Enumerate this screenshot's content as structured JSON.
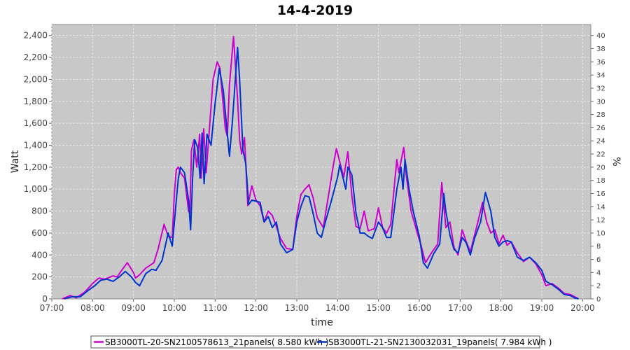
{
  "chart_data": {
    "type": "line",
    "title": "14-4-2019",
    "xlabel": "time",
    "ylabel": "Watt",
    "y2label": "%",
    "ylim": [
      0,
      2500
    ],
    "y2lim": [
      0,
      41.67
    ],
    "xlim": [
      7.0,
      20.2
    ],
    "grid": true,
    "legend_position": "bottom",
    "colors": {
      "plot_bg": "#c8c8c8",
      "grid": "#e6e6e6"
    },
    "xticks": [
      "07:00",
      "08:00",
      "09:00",
      "10:00",
      "11:00",
      "12:00",
      "13:00",
      "14:00",
      "15:00",
      "16:00",
      "17:00",
      "18:00",
      "19:00",
      "20:00"
    ],
    "yticks": [
      "0",
      "200",
      "400",
      "600",
      "800",
      "1,000",
      "1,200",
      "1,400",
      "1,600",
      "1,800",
      "2,000",
      "2,200",
      "2,400"
    ],
    "y2ticks": [
      "0",
      "2",
      "4",
      "6",
      "8",
      "10",
      "12",
      "14",
      "16",
      "18",
      "20",
      "22",
      "24",
      "26",
      "28",
      "30",
      "32",
      "34",
      "36",
      "38",
      "40"
    ],
    "series": [
      {
        "name": "SB3000TL-20-SN2100578613_21panels( 8.580 kWh )",
        "color": "#cc00cc",
        "points": [
          [
            7.25,
            0
          ],
          [
            7.45,
            30
          ],
          [
            7.6,
            10
          ],
          [
            7.8,
            60
          ],
          [
            8.0,
            140
          ],
          [
            8.15,
            190
          ],
          [
            8.3,
            180
          ],
          [
            8.5,
            210
          ],
          [
            8.6,
            200
          ],
          [
            8.75,
            280
          ],
          [
            8.85,
            330
          ],
          [
            9.0,
            240
          ],
          [
            9.05,
            190
          ],
          [
            9.15,
            220
          ],
          [
            9.3,
            280
          ],
          [
            9.5,
            330
          ],
          [
            9.6,
            450
          ],
          [
            9.75,
            680
          ],
          [
            9.85,
            570
          ],
          [
            9.95,
            560
          ],
          [
            10.0,
            950
          ],
          [
            10.05,
            1180
          ],
          [
            10.1,
            1200
          ],
          [
            10.15,
            1150
          ],
          [
            10.25,
            1100
          ],
          [
            10.35,
            800
          ],
          [
            10.38,
            780
          ],
          [
            10.42,
            1350
          ],
          [
            10.48,
            1450
          ],
          [
            10.55,
            1200
          ],
          [
            10.62,
            1500
          ],
          [
            10.66,
            1100
          ],
          [
            10.72,
            1550
          ],
          [
            10.78,
            1150
          ],
          [
            10.85,
            1500
          ],
          [
            10.95,
            2000
          ],
          [
            11.05,
            2160
          ],
          [
            11.12,
            2100
          ],
          [
            11.25,
            1550
          ],
          [
            11.3,
            1480
          ],
          [
            11.35,
            1950
          ],
          [
            11.45,
            2390
          ],
          [
            11.55,
            1820
          ],
          [
            11.6,
            1450
          ],
          [
            11.65,
            1320
          ],
          [
            11.72,
            1470
          ],
          [
            11.8,
            850
          ],
          [
            11.9,
            1030
          ],
          [
            12.0,
            900
          ],
          [
            12.1,
            850
          ],
          [
            12.2,
            700
          ],
          [
            12.3,
            800
          ],
          [
            12.4,
            760
          ],
          [
            12.5,
            660
          ],
          [
            12.6,
            550
          ],
          [
            12.75,
            460
          ],
          [
            12.9,
            450
          ],
          [
            13.0,
            750
          ],
          [
            13.1,
            950
          ],
          [
            13.2,
            1000
          ],
          [
            13.3,
            1040
          ],
          [
            13.4,
            920
          ],
          [
            13.5,
            740
          ],
          [
            13.65,
            650
          ],
          [
            13.8,
            1000
          ],
          [
            13.9,
            1230
          ],
          [
            13.97,
            1370
          ],
          [
            14.05,
            1250
          ],
          [
            14.15,
            1110
          ],
          [
            14.25,
            1340
          ],
          [
            14.35,
            940
          ],
          [
            14.45,
            660
          ],
          [
            14.55,
            640
          ],
          [
            14.65,
            800
          ],
          [
            14.75,
            620
          ],
          [
            14.9,
            640
          ],
          [
            15.0,
            830
          ],
          [
            15.1,
            650
          ],
          [
            15.2,
            600
          ],
          [
            15.3,
            680
          ],
          [
            15.45,
            1270
          ],
          [
            15.5,
            1150
          ],
          [
            15.55,
            1250
          ],
          [
            15.62,
            1380
          ],
          [
            15.68,
            1130
          ],
          [
            15.8,
            800
          ],
          [
            15.95,
            600
          ],
          [
            16.05,
            480
          ],
          [
            16.15,
            330
          ],
          [
            16.3,
            420
          ],
          [
            16.45,
            500
          ],
          [
            16.55,
            1060
          ],
          [
            16.65,
            650
          ],
          [
            16.75,
            700
          ],
          [
            16.85,
            470
          ],
          [
            16.95,
            400
          ],
          [
            17.05,
            630
          ],
          [
            17.15,
            520
          ],
          [
            17.25,
            430
          ],
          [
            17.4,
            650
          ],
          [
            17.55,
            880
          ],
          [
            17.65,
            700
          ],
          [
            17.75,
            600
          ],
          [
            17.85,
            630
          ],
          [
            17.95,
            500
          ],
          [
            18.05,
            580
          ],
          [
            18.15,
            490
          ],
          [
            18.25,
            520
          ],
          [
            18.4,
            420
          ],
          [
            18.55,
            340
          ],
          [
            18.7,
            380
          ],
          [
            18.85,
            320
          ],
          [
            19.0,
            220
          ],
          [
            19.1,
            120
          ],
          [
            19.25,
            140
          ],
          [
            19.4,
            100
          ],
          [
            19.55,
            50
          ],
          [
            19.7,
            40
          ],
          [
            19.85,
            10
          ],
          [
            19.9,
            0
          ]
        ]
      },
      {
        "name": "SB3000TL-21-SN2130032031_19panels( 7.984 kWh )",
        "color": "#0033cc",
        "points": [
          [
            7.3,
            0
          ],
          [
            7.5,
            20
          ],
          [
            7.7,
            20
          ],
          [
            7.9,
            80
          ],
          [
            8.05,
            120
          ],
          [
            8.2,
            170
          ],
          [
            8.35,
            180
          ],
          [
            8.5,
            160
          ],
          [
            8.65,
            200
          ],
          [
            8.8,
            250
          ],
          [
            8.95,
            200
          ],
          [
            9.05,
            150
          ],
          [
            9.15,
            120
          ],
          [
            9.3,
            230
          ],
          [
            9.45,
            270
          ],
          [
            9.55,
            260
          ],
          [
            9.7,
            350
          ],
          [
            9.85,
            600
          ],
          [
            9.95,
            480
          ],
          [
            10.05,
            900
          ],
          [
            10.1,
            1100
          ],
          [
            10.15,
            1200
          ],
          [
            10.25,
            1150
          ],
          [
            10.35,
            900
          ],
          [
            10.4,
            630
          ],
          [
            10.45,
            1100
          ],
          [
            10.5,
            1450
          ],
          [
            10.57,
            1380
          ],
          [
            10.63,
            1100
          ],
          [
            10.68,
            1510
          ],
          [
            10.73,
            1050
          ],
          [
            10.8,
            1500
          ],
          [
            10.9,
            1400
          ],
          [
            11.0,
            1780
          ],
          [
            11.1,
            2100
          ],
          [
            11.2,
            1900
          ],
          [
            11.3,
            1500
          ],
          [
            11.35,
            1300
          ],
          [
            11.42,
            1600
          ],
          [
            11.55,
            2290
          ],
          [
            11.6,
            2000
          ],
          [
            11.68,
            1360
          ],
          [
            11.75,
            1230
          ],
          [
            11.82,
            860
          ],
          [
            11.9,
            900
          ],
          [
            12.0,
            890
          ],
          [
            12.1,
            880
          ],
          [
            12.2,
            700
          ],
          [
            12.3,
            750
          ],
          [
            12.4,
            650
          ],
          [
            12.5,
            700
          ],
          [
            12.6,
            500
          ],
          [
            12.75,
            420
          ],
          [
            12.9,
            450
          ],
          [
            13.0,
            700
          ],
          [
            13.1,
            840
          ],
          [
            13.2,
            940
          ],
          [
            13.3,
            930
          ],
          [
            13.4,
            780
          ],
          [
            13.5,
            600
          ],
          [
            13.6,
            560
          ],
          [
            13.7,
            700
          ],
          [
            13.85,
            900
          ],
          [
            14.0,
            1110
          ],
          [
            14.05,
            1220
          ],
          [
            14.1,
            1150
          ],
          [
            14.2,
            1000
          ],
          [
            14.25,
            1200
          ],
          [
            14.35,
            1130
          ],
          [
            14.45,
            780
          ],
          [
            14.55,
            600
          ],
          [
            14.65,
            600
          ],
          [
            14.75,
            570
          ],
          [
            14.85,
            550
          ],
          [
            15.0,
            700
          ],
          [
            15.1,
            650
          ],
          [
            15.2,
            560
          ],
          [
            15.3,
            560
          ],
          [
            15.45,
            1000
          ],
          [
            15.55,
            1200
          ],
          [
            15.6,
            1000
          ],
          [
            15.65,
            1270
          ],
          [
            15.75,
            1000
          ],
          [
            15.85,
            800
          ],
          [
            16.0,
            570
          ],
          [
            16.1,
            330
          ],
          [
            16.2,
            280
          ],
          [
            16.35,
            410
          ],
          [
            16.5,
            500
          ],
          [
            16.6,
            960
          ],
          [
            16.65,
            800
          ],
          [
            16.75,
            580
          ],
          [
            16.85,
            450
          ],
          [
            16.95,
            420
          ],
          [
            17.05,
            560
          ],
          [
            17.15,
            510
          ],
          [
            17.25,
            400
          ],
          [
            17.35,
            550
          ],
          [
            17.5,
            700
          ],
          [
            17.62,
            970
          ],
          [
            17.75,
            800
          ],
          [
            17.85,
            560
          ],
          [
            17.95,
            480
          ],
          [
            18.05,
            520
          ],
          [
            18.15,
            530
          ],
          [
            18.25,
            520
          ],
          [
            18.4,
            380
          ],
          [
            18.55,
            350
          ],
          [
            18.7,
            380
          ],
          [
            18.85,
            330
          ],
          [
            19.0,
            260
          ],
          [
            19.1,
            160
          ],
          [
            19.25,
            130
          ],
          [
            19.4,
            90
          ],
          [
            19.55,
            40
          ],
          [
            19.7,
            30
          ],
          [
            19.8,
            10
          ],
          [
            19.9,
            0
          ]
        ]
      }
    ]
  }
}
